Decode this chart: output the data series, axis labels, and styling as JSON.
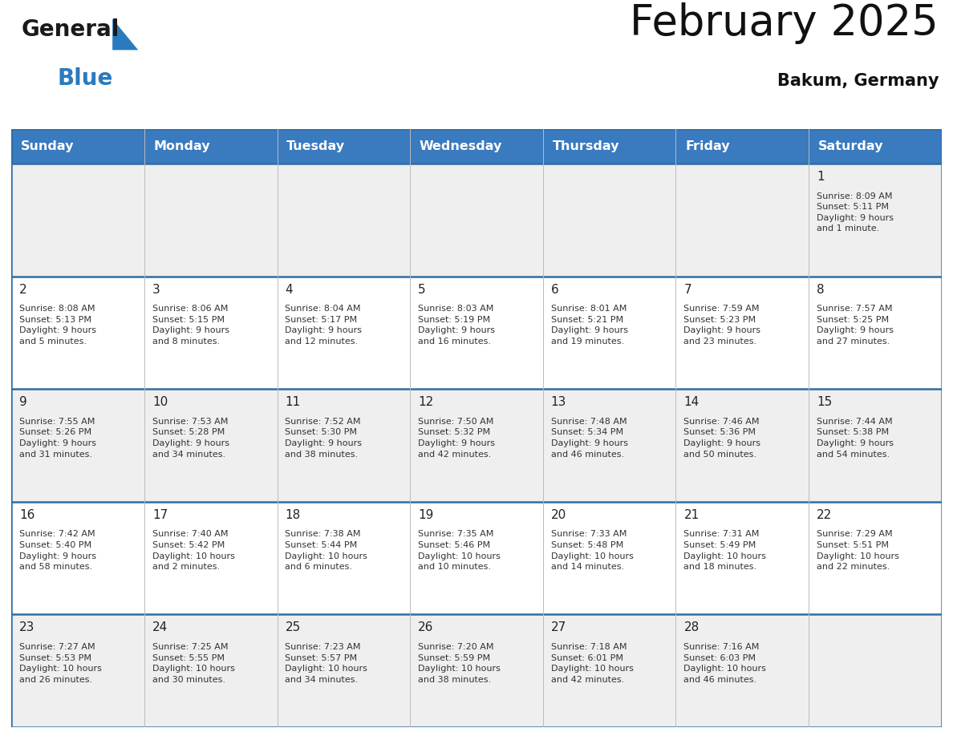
{
  "title": "February 2025",
  "subtitle": "Bakum, Germany",
  "header_bg": "#3a7abf",
  "header_text_color": "#ffffff",
  "days_of_week": [
    "Sunday",
    "Monday",
    "Tuesday",
    "Wednesday",
    "Thursday",
    "Friday",
    "Saturday"
  ],
  "row_bg": [
    "#efefef",
    "#ffffff",
    "#efefef",
    "#ffffff",
    "#efefef"
  ],
  "cell_border_color": "#2e6da4",
  "calendar_data": [
    [
      {
        "day": "",
        "info": ""
      },
      {
        "day": "",
        "info": ""
      },
      {
        "day": "",
        "info": ""
      },
      {
        "day": "",
        "info": ""
      },
      {
        "day": "",
        "info": ""
      },
      {
        "day": "",
        "info": ""
      },
      {
        "day": "1",
        "info": "Sunrise: 8:09 AM\nSunset: 5:11 PM\nDaylight: 9 hours\nand 1 minute."
      }
    ],
    [
      {
        "day": "2",
        "info": "Sunrise: 8:08 AM\nSunset: 5:13 PM\nDaylight: 9 hours\nand 5 minutes."
      },
      {
        "day": "3",
        "info": "Sunrise: 8:06 AM\nSunset: 5:15 PM\nDaylight: 9 hours\nand 8 minutes."
      },
      {
        "day": "4",
        "info": "Sunrise: 8:04 AM\nSunset: 5:17 PM\nDaylight: 9 hours\nand 12 minutes."
      },
      {
        "day": "5",
        "info": "Sunrise: 8:03 AM\nSunset: 5:19 PM\nDaylight: 9 hours\nand 16 minutes."
      },
      {
        "day": "6",
        "info": "Sunrise: 8:01 AM\nSunset: 5:21 PM\nDaylight: 9 hours\nand 19 minutes."
      },
      {
        "day": "7",
        "info": "Sunrise: 7:59 AM\nSunset: 5:23 PM\nDaylight: 9 hours\nand 23 minutes."
      },
      {
        "day": "8",
        "info": "Sunrise: 7:57 AM\nSunset: 5:25 PM\nDaylight: 9 hours\nand 27 minutes."
      }
    ],
    [
      {
        "day": "9",
        "info": "Sunrise: 7:55 AM\nSunset: 5:26 PM\nDaylight: 9 hours\nand 31 minutes."
      },
      {
        "day": "10",
        "info": "Sunrise: 7:53 AM\nSunset: 5:28 PM\nDaylight: 9 hours\nand 34 minutes."
      },
      {
        "day": "11",
        "info": "Sunrise: 7:52 AM\nSunset: 5:30 PM\nDaylight: 9 hours\nand 38 minutes."
      },
      {
        "day": "12",
        "info": "Sunrise: 7:50 AM\nSunset: 5:32 PM\nDaylight: 9 hours\nand 42 minutes."
      },
      {
        "day": "13",
        "info": "Sunrise: 7:48 AM\nSunset: 5:34 PM\nDaylight: 9 hours\nand 46 minutes."
      },
      {
        "day": "14",
        "info": "Sunrise: 7:46 AM\nSunset: 5:36 PM\nDaylight: 9 hours\nand 50 minutes."
      },
      {
        "day": "15",
        "info": "Sunrise: 7:44 AM\nSunset: 5:38 PM\nDaylight: 9 hours\nand 54 minutes."
      }
    ],
    [
      {
        "day": "16",
        "info": "Sunrise: 7:42 AM\nSunset: 5:40 PM\nDaylight: 9 hours\nand 58 minutes."
      },
      {
        "day": "17",
        "info": "Sunrise: 7:40 AM\nSunset: 5:42 PM\nDaylight: 10 hours\nand 2 minutes."
      },
      {
        "day": "18",
        "info": "Sunrise: 7:38 AM\nSunset: 5:44 PM\nDaylight: 10 hours\nand 6 minutes."
      },
      {
        "day": "19",
        "info": "Sunrise: 7:35 AM\nSunset: 5:46 PM\nDaylight: 10 hours\nand 10 minutes."
      },
      {
        "day": "20",
        "info": "Sunrise: 7:33 AM\nSunset: 5:48 PM\nDaylight: 10 hours\nand 14 minutes."
      },
      {
        "day": "21",
        "info": "Sunrise: 7:31 AM\nSunset: 5:49 PM\nDaylight: 10 hours\nand 18 minutes."
      },
      {
        "day": "22",
        "info": "Sunrise: 7:29 AM\nSunset: 5:51 PM\nDaylight: 10 hours\nand 22 minutes."
      }
    ],
    [
      {
        "day": "23",
        "info": "Sunrise: 7:27 AM\nSunset: 5:53 PM\nDaylight: 10 hours\nand 26 minutes."
      },
      {
        "day": "24",
        "info": "Sunrise: 7:25 AM\nSunset: 5:55 PM\nDaylight: 10 hours\nand 30 minutes."
      },
      {
        "day": "25",
        "info": "Sunrise: 7:23 AM\nSunset: 5:57 PM\nDaylight: 10 hours\nand 34 minutes."
      },
      {
        "day": "26",
        "info": "Sunrise: 7:20 AM\nSunset: 5:59 PM\nDaylight: 10 hours\nand 38 minutes."
      },
      {
        "day": "27",
        "info": "Sunrise: 7:18 AM\nSunset: 6:01 PM\nDaylight: 10 hours\nand 42 minutes."
      },
      {
        "day": "28",
        "info": "Sunrise: 7:16 AM\nSunset: 6:03 PM\nDaylight: 10 hours\nand 46 minutes."
      },
      {
        "day": "",
        "info": ""
      }
    ]
  ],
  "logo_general_color": "#1a1a1a",
  "logo_blue_color": "#2a7abf",
  "logo_triangle_color": "#2a7abf",
  "title_fontsize": 38,
  "subtitle_fontsize": 15,
  "header_fontsize": 11.5,
  "day_num_fontsize": 11,
  "info_fontsize": 8
}
